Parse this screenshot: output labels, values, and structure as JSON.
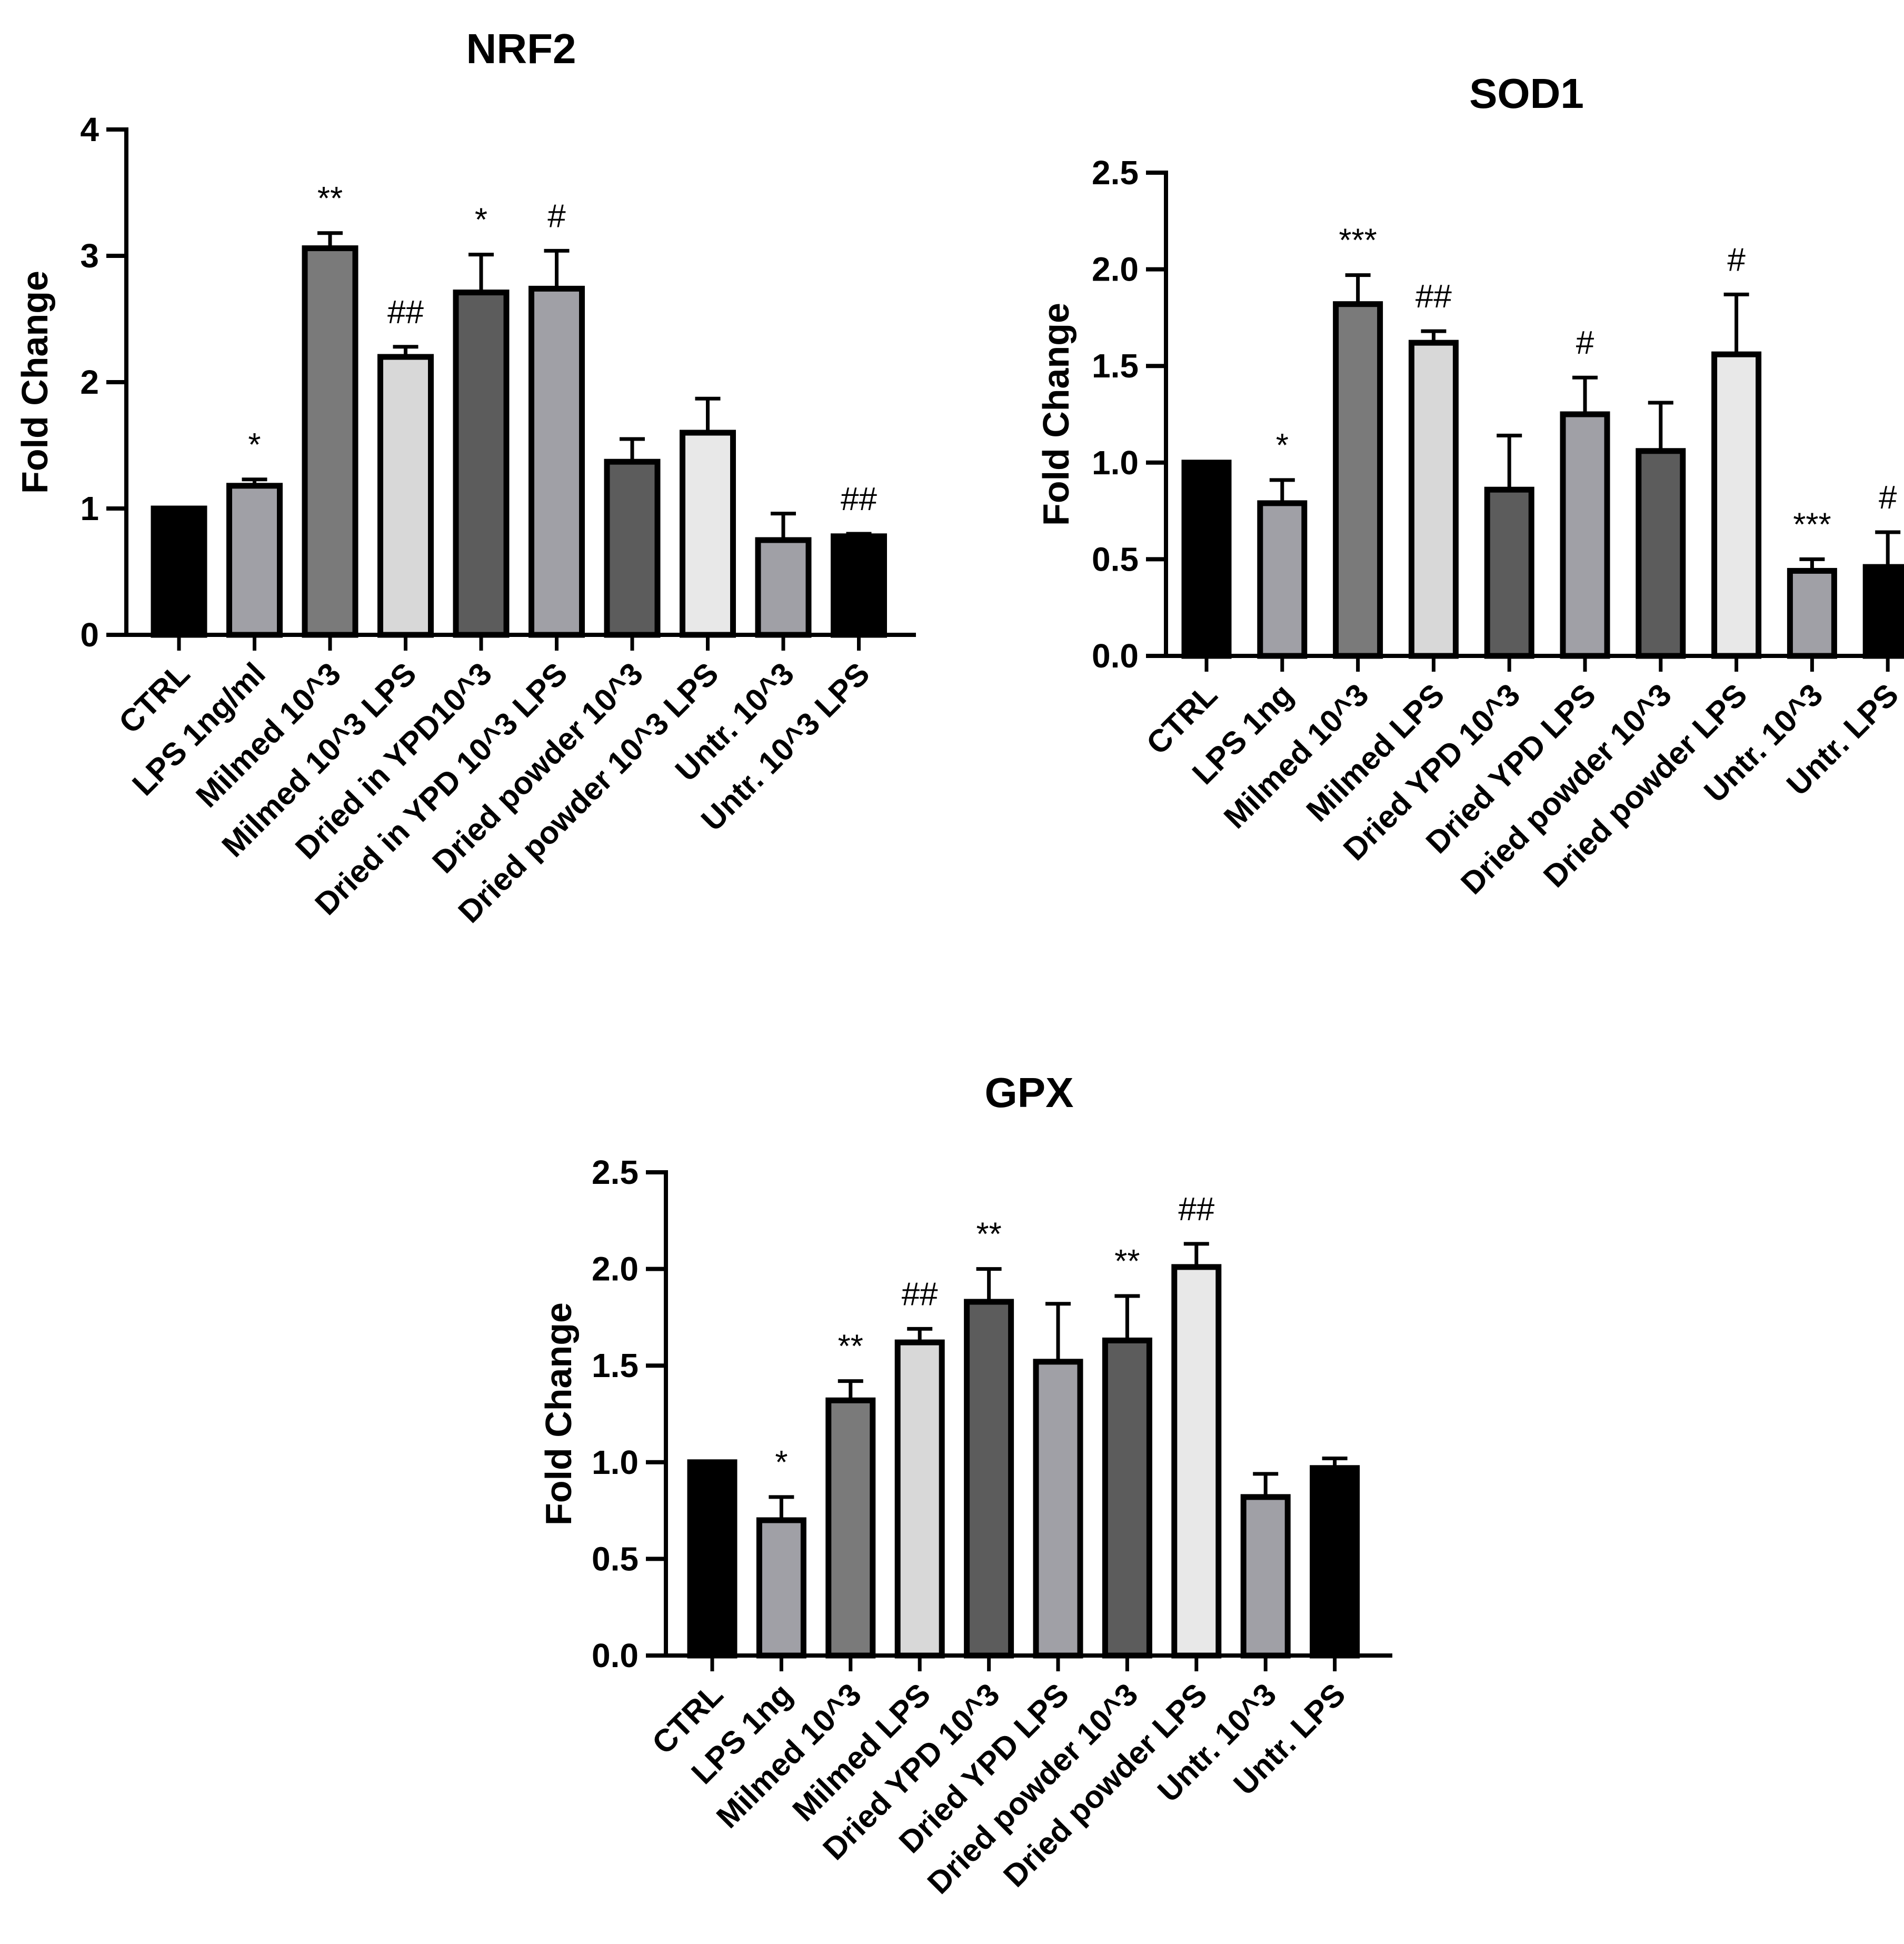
{
  "chart_data": [
    {
      "type": "bar",
      "title": "NRF2",
      "ylabel": "Fold Change",
      "xlabel": "",
      "ylim": [
        0,
        4
      ],
      "yticks": [
        "0",
        "1",
        "2",
        "3",
        "4"
      ],
      "categories": [
        "CTRL",
        "LPS 1ng/ml",
        "Milmed 10^3",
        "Milmed 10^3 LPS",
        "Dried in YPD10^3",
        "Dried in YPD 10^3 LPS",
        "Dried powder 10^3",
        "Dried powder 10^3 LPS",
        "Untr. 10^3",
        "Untr. 10^3 LPS"
      ],
      "values": [
        1.0,
        1.18,
        3.06,
        2.2,
        2.71,
        2.74,
        1.37,
        1.6,
        0.75,
        0.78
      ],
      "errors": [
        0,
        0.05,
        0.12,
        0.08,
        0.3,
        0.3,
        0.18,
        0.27,
        0.21,
        0.02
      ],
      "annotations": [
        "",
        "*",
        "**",
        "##",
        "*",
        "#",
        "",
        "",
        "",
        "##"
      ],
      "colors": [
        "#000000",
        "#a0a0a6",
        "#7a7a7a",
        "#d8d8d8",
        "#5c5c5c",
        "#a0a0a6",
        "#5c5c5c",
        "#e8e8e8",
        "#a0a0a6",
        "#000000"
      ]
    },
    {
      "type": "bar",
      "title": "SOD1",
      "ylabel": "Fold Change",
      "xlabel": "",
      "ylim": [
        0,
        2.5
      ],
      "yticks": [
        "0.0",
        "0.5",
        "1.0",
        "1.5",
        "2.0",
        "2.5"
      ],
      "categories": [
        "CTRL",
        "LPS 1ng",
        "Milmed 10^3",
        "Milmed LPS",
        "Dried YPD 10^3",
        "Dried YPD LPS",
        "Dried powder 10^3",
        "Dried powder LPS",
        "Untr. 10^3",
        "Untr. LPS"
      ],
      "values": [
        1.0,
        0.79,
        1.82,
        1.62,
        0.86,
        1.25,
        1.06,
        1.56,
        0.44,
        0.46
      ],
      "errors": [
        0,
        0.12,
        0.15,
        0.06,
        0.28,
        0.19,
        0.25,
        0.31,
        0.06,
        0.18
      ],
      "annotations": [
        "",
        "*",
        "***",
        "##",
        "",
        "#",
        "",
        "#",
        "***",
        "#"
      ],
      "colors": [
        "#000000",
        "#a0a0a6",
        "#7a7a7a",
        "#d8d8d8",
        "#5c5c5c",
        "#a0a0a6",
        "#5c5c5c",
        "#e8e8e8",
        "#a0a0a6",
        "#000000"
      ]
    },
    {
      "type": "bar",
      "title": "GPX",
      "ylabel": "Fold Change",
      "xlabel": "",
      "ylim": [
        0,
        2.5
      ],
      "yticks": [
        "0.0",
        "0.5",
        "1.0",
        "1.5",
        "2.0",
        "2.5"
      ],
      "categories": [
        "CTRL",
        "LPS 1ng",
        "Milmed 10^3",
        "Milmed LPS",
        "Dried YPD 10^3",
        "Dried YPD LPS",
        "Dried powder 10^3",
        "Dried powder LPS",
        "Untr. 10^3",
        "Untr. LPS"
      ],
      "values": [
        1.0,
        0.7,
        1.32,
        1.62,
        1.83,
        1.52,
        1.63,
        2.01,
        0.82,
        0.97
      ],
      "errors": [
        0,
        0.12,
        0.1,
        0.07,
        0.17,
        0.3,
        0.23,
        0.12,
        0.12,
        0.05
      ],
      "annotations": [
        "",
        "*",
        "**",
        "##",
        "**",
        "",
        "**",
        "##",
        "",
        ""
      ],
      "colors": [
        "#000000",
        "#a0a0a6",
        "#7a7a7a",
        "#d8d8d8",
        "#5c5c5c",
        "#a0a0a6",
        "#5c5c5c",
        "#e8e8e8",
        "#a0a0a6",
        "#000000"
      ]
    }
  ]
}
